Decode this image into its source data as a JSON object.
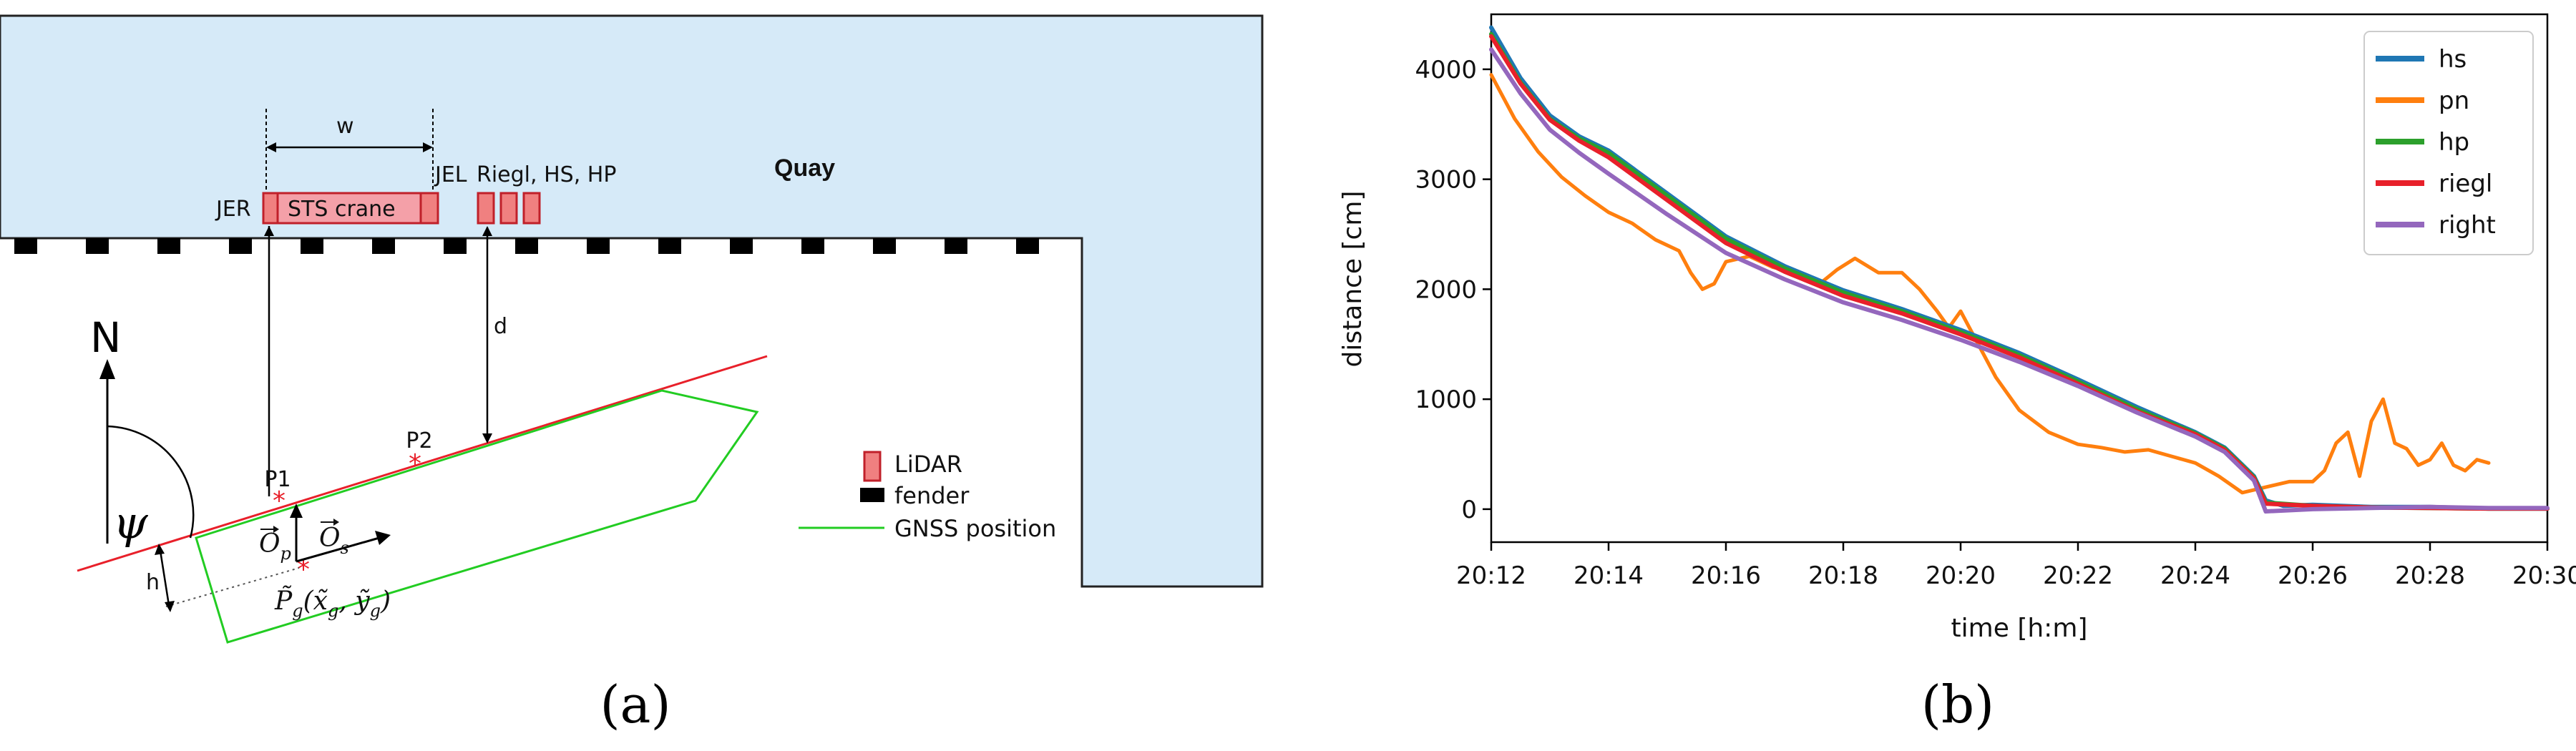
{
  "panel_a": {
    "caption": "(a)",
    "quay_label": "Quay",
    "crane_label": "STS crane",
    "jer_label": "JER",
    "jel_label": "JEL",
    "sensors_label": "Riegl, HS, HP",
    "w_label": "w",
    "d_label": "d",
    "north_label": "N",
    "psi_label": "ψ",
    "p1_label": "P1",
    "p2_label": "P2",
    "h_label": "h",
    "op_label": "O",
    "op_sub": "p",
    "os_label": "O",
    "os_sub": "s",
    "pg_label": "P̃",
    "pg_sub": "g",
    "pg_args": "(x̃",
    "pg_args_sub1": "g",
    "pg_args_mid": ", ỹ",
    "pg_args_sub2": "g",
    "pg_args_end": ")",
    "legend": [
      {
        "label": "LiDAR",
        "symbol": "lidar",
        "color": "#f08080"
      },
      {
        "label": "fender",
        "symbol": "fender",
        "color": "#000000"
      },
      {
        "label": "GNSS position",
        "symbol": "line",
        "color": "#00cc00"
      }
    ],
    "colors": {
      "quay": "#d6eaf8",
      "gnss": "#22cc22",
      "heading": "#e8202a",
      "lidar": "#f08080",
      "lidar_edge": "#c0202a"
    }
  },
  "panel_b": {
    "caption": "(b)",
    "chart_data": {
      "type": "line",
      "xlabel": "time [h:m]",
      "ylabel": "distance [cm]",
      "xlim": [
        0,
        18
      ],
      "ylim": [
        -300,
        4500
      ],
      "x_ticks": [
        "20:12",
        "20:14",
        "20:16",
        "20:18",
        "20:20",
        "20:22",
        "20:24",
        "20:26",
        "20:28",
        "20:30"
      ],
      "y_ticks": [
        0,
        1000,
        2000,
        3000,
        4000
      ],
      "grid": false,
      "legend_position": "top-right",
      "series": [
        {
          "name": "hs",
          "color": "#1f77b4",
          "x": [
            0,
            0.5,
            1,
            1.5,
            2,
            3,
            4,
            5,
            6,
            7,
            8,
            9,
            10,
            11,
            12,
            12.5,
            13,
            13.2,
            13.5,
            14,
            15,
            16,
            17,
            18
          ],
          "y": [
            4380,
            3920,
            3580,
            3390,
            3260,
            2870,
            2480,
            2210,
            1990,
            1820,
            1630,
            1420,
            1180,
            930,
            700,
            560,
            300,
            80,
            30,
            40,
            20,
            20,
            5,
            5
          ]
        },
        {
          "name": "pn",
          "color": "#ff7f0e",
          "x": [
            0,
            0.4,
            0.8,
            1.2,
            1.6,
            2,
            2.4,
            2.8,
            3.2,
            3.4,
            3.6,
            3.8,
            4,
            4.4,
            4.8,
            5.2,
            5.6,
            5.9,
            6.2,
            6.6,
            7,
            7.3,
            7.6,
            7.8,
            8,
            8.3,
            8.6,
            9,
            9.5,
            10,
            10.4,
            10.8,
            11.2,
            11.6,
            12,
            12.4,
            12.8,
            13.2,
            13.6,
            14,
            14.2,
            14.4,
            14.6,
            14.8,
            15,
            15.2,
            15.4,
            15.6,
            15.8,
            16,
            16.2,
            16.4,
            16.6,
            16.8,
            17
          ],
          "y": [
            3950,
            3550,
            3250,
            3020,
            2850,
            2700,
            2600,
            2450,
            2350,
            2150,
            2000,
            2050,
            2250,
            2300,
            2200,
            2150,
            2050,
            2180,
            2280,
            2150,
            2150,
            2000,
            1800,
            1650,
            1800,
            1500,
            1200,
            900,
            700,
            590,
            560,
            520,
            540,
            480,
            420,
            300,
            150,
            200,
            250,
            250,
            350,
            600,
            700,
            300,
            800,
            1000,
            600,
            550,
            400,
            450,
            600,
            400,
            350,
            450,
            420
          ]
        },
        {
          "name": "hp",
          "color": "#2ca02c",
          "x": [
            0,
            0.5,
            1,
            1.5,
            2,
            3,
            4,
            5,
            6,
            7,
            8,
            9,
            10,
            11,
            12,
            12.5,
            13,
            13.2,
            14,
            15,
            16,
            17,
            18
          ],
          "y": [
            4320,
            3880,
            3550,
            3370,
            3240,
            2850,
            2460,
            2190,
            1970,
            1800,
            1610,
            1400,
            1160,
            910,
            690,
            550,
            290,
            60,
            30,
            15,
            10,
            5,
            5
          ]
        },
        {
          "name": "riegl",
          "color": "#e8202a",
          "x": [
            0,
            0.5,
            1,
            1.5,
            2,
            3,
            4,
            5,
            6,
            7,
            8,
            9,
            10,
            11,
            12,
            12.5,
            13,
            13.2,
            14,
            15,
            16,
            17,
            18
          ],
          "y": [
            4300,
            3870,
            3540,
            3350,
            3200,
            2810,
            2420,
            2160,
            1940,
            1780,
            1590,
            1380,
            1140,
            890,
            680,
            540,
            280,
            50,
            30,
            15,
            10,
            5,
            5
          ]
        },
        {
          "name": "right",
          "color": "#9467bd",
          "x": [
            0,
            0.5,
            1,
            1.5,
            2,
            3,
            4,
            5,
            6,
            7,
            8,
            9,
            10,
            11,
            12,
            12.5,
            13,
            13.2,
            14,
            15,
            16,
            17,
            18
          ],
          "y": [
            4180,
            3780,
            3450,
            3240,
            3050,
            2680,
            2330,
            2090,
            1880,
            1720,
            1540,
            1340,
            1120,
            880,
            660,
            520,
            260,
            -20,
            0,
            10,
            20,
            10,
            10
          ]
        }
      ]
    }
  }
}
